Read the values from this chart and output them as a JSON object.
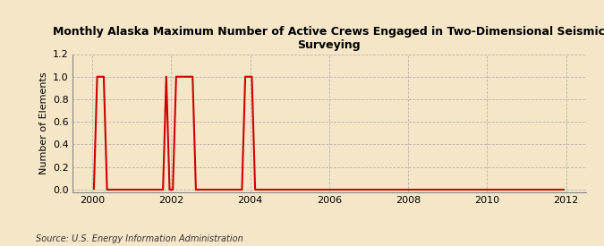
{
  "title": "Monthly Alaska Maximum Number of Active Crews Engaged in Two-Dimensional Seismic\nSurveying",
  "ylabel": "Number of Elements",
  "source": "Source: U.S. Energy Information Administration",
  "background_color": "#f5e6c8",
  "line_color": "#cc0000",
  "grid_color": "#b0b0b0",
  "xlim": [
    1999.5,
    2012.5
  ],
  "ylim": [
    -0.02,
    1.2
  ],
  "yticks": [
    0.0,
    0.2,
    0.4,
    0.6,
    0.8,
    1.0,
    1.2
  ],
  "xticks": [
    2000,
    2002,
    2004,
    2006,
    2008,
    2010,
    2012
  ],
  "months_data": [
    [
      2000,
      1,
      0
    ],
    [
      2000,
      2,
      1
    ],
    [
      2000,
      3,
      1
    ],
    [
      2000,
      4,
      1
    ],
    [
      2000,
      5,
      0
    ],
    [
      2000,
      6,
      0
    ],
    [
      2000,
      7,
      0
    ],
    [
      2000,
      8,
      0
    ],
    [
      2000,
      9,
      0
    ],
    [
      2000,
      10,
      0
    ],
    [
      2000,
      11,
      0
    ],
    [
      2000,
      12,
      0
    ],
    [
      2001,
      1,
      0
    ],
    [
      2001,
      2,
      0
    ],
    [
      2001,
      3,
      0
    ],
    [
      2001,
      4,
      0
    ],
    [
      2001,
      5,
      0
    ],
    [
      2001,
      6,
      0
    ],
    [
      2001,
      7,
      0
    ],
    [
      2001,
      8,
      0
    ],
    [
      2001,
      9,
      0
    ],
    [
      2001,
      10,
      0
    ],
    [
      2001,
      11,
      1
    ],
    [
      2001,
      12,
      0
    ],
    [
      2002,
      1,
      0
    ],
    [
      2002,
      2,
      1
    ],
    [
      2002,
      3,
      1
    ],
    [
      2002,
      4,
      1
    ],
    [
      2002,
      5,
      1
    ],
    [
      2002,
      6,
      1
    ],
    [
      2002,
      7,
      1
    ],
    [
      2002,
      8,
      0
    ],
    [
      2002,
      9,
      0
    ],
    [
      2002,
      10,
      0
    ],
    [
      2002,
      11,
      0
    ],
    [
      2002,
      12,
      0
    ],
    [
      2003,
      1,
      0
    ],
    [
      2003,
      2,
      0
    ],
    [
      2003,
      3,
      0
    ],
    [
      2003,
      4,
      0
    ],
    [
      2003,
      5,
      0
    ],
    [
      2003,
      6,
      0
    ],
    [
      2003,
      7,
      0
    ],
    [
      2003,
      8,
      0
    ],
    [
      2003,
      9,
      0
    ],
    [
      2003,
      10,
      0
    ],
    [
      2003,
      11,
      1
    ],
    [
      2003,
      12,
      1
    ],
    [
      2004,
      1,
      1
    ],
    [
      2004,
      2,
      0
    ],
    [
      2004,
      3,
      0
    ],
    [
      2004,
      4,
      0
    ],
    [
      2004,
      5,
      0
    ],
    [
      2004,
      6,
      0
    ],
    [
      2004,
      7,
      0
    ],
    [
      2004,
      8,
      0
    ],
    [
      2004,
      9,
      0
    ],
    [
      2004,
      10,
      0
    ],
    [
      2004,
      11,
      0
    ],
    [
      2004,
      12,
      0
    ],
    [
      2005,
      1,
      0
    ],
    [
      2005,
      2,
      0
    ],
    [
      2005,
      3,
      0
    ],
    [
      2005,
      4,
      0
    ],
    [
      2005,
      5,
      0
    ],
    [
      2005,
      6,
      0
    ],
    [
      2005,
      7,
      0
    ],
    [
      2005,
      8,
      0
    ],
    [
      2005,
      9,
      0
    ],
    [
      2005,
      10,
      0
    ],
    [
      2005,
      11,
      0
    ],
    [
      2005,
      12,
      0
    ],
    [
      2006,
      1,
      0
    ],
    [
      2006,
      2,
      0
    ],
    [
      2006,
      3,
      0
    ],
    [
      2006,
      4,
      0
    ],
    [
      2006,
      5,
      0
    ],
    [
      2006,
      6,
      0
    ],
    [
      2006,
      7,
      0
    ],
    [
      2006,
      8,
      0
    ],
    [
      2006,
      9,
      0
    ],
    [
      2006,
      10,
      0
    ],
    [
      2006,
      11,
      0
    ],
    [
      2006,
      12,
      0
    ],
    [
      2007,
      1,
      0
    ],
    [
      2007,
      2,
      0
    ],
    [
      2007,
      3,
      0
    ],
    [
      2007,
      4,
      0
    ],
    [
      2007,
      5,
      0
    ],
    [
      2007,
      6,
      0
    ],
    [
      2007,
      7,
      0
    ],
    [
      2007,
      8,
      0
    ],
    [
      2007,
      9,
      0
    ],
    [
      2007,
      10,
      0
    ],
    [
      2007,
      11,
      0
    ],
    [
      2007,
      12,
      0
    ],
    [
      2008,
      1,
      0
    ],
    [
      2008,
      2,
      0
    ],
    [
      2008,
      3,
      0
    ],
    [
      2008,
      4,
      0
    ],
    [
      2008,
      5,
      0
    ],
    [
      2008,
      6,
      0
    ],
    [
      2008,
      7,
      0
    ],
    [
      2008,
      8,
      0
    ],
    [
      2008,
      9,
      0
    ],
    [
      2008,
      10,
      0
    ],
    [
      2008,
      11,
      0
    ],
    [
      2008,
      12,
      0
    ],
    [
      2009,
      1,
      0
    ],
    [
      2009,
      2,
      0
    ],
    [
      2009,
      3,
      0
    ],
    [
      2009,
      4,
      0
    ],
    [
      2009,
      5,
      0
    ],
    [
      2009,
      6,
      0
    ],
    [
      2009,
      7,
      0
    ],
    [
      2009,
      8,
      0
    ],
    [
      2009,
      9,
      0
    ],
    [
      2009,
      10,
      0
    ],
    [
      2009,
      11,
      0
    ],
    [
      2009,
      12,
      0
    ],
    [
      2010,
      1,
      0
    ],
    [
      2010,
      2,
      0
    ],
    [
      2010,
      3,
      0
    ],
    [
      2010,
      4,
      0
    ],
    [
      2010,
      5,
      0
    ],
    [
      2010,
      6,
      0
    ],
    [
      2010,
      7,
      0
    ],
    [
      2010,
      8,
      0
    ],
    [
      2010,
      9,
      0
    ],
    [
      2010,
      10,
      0
    ],
    [
      2010,
      11,
      0
    ],
    [
      2010,
      12,
      0
    ],
    [
      2011,
      1,
      0
    ],
    [
      2011,
      2,
      0
    ],
    [
      2011,
      3,
      0
    ],
    [
      2011,
      4,
      0
    ],
    [
      2011,
      5,
      0
    ],
    [
      2011,
      6,
      0
    ],
    [
      2011,
      7,
      0
    ],
    [
      2011,
      8,
      0
    ],
    [
      2011,
      9,
      0
    ],
    [
      2011,
      10,
      0
    ],
    [
      2011,
      11,
      0
    ],
    [
      2011,
      12,
      0
    ]
  ]
}
